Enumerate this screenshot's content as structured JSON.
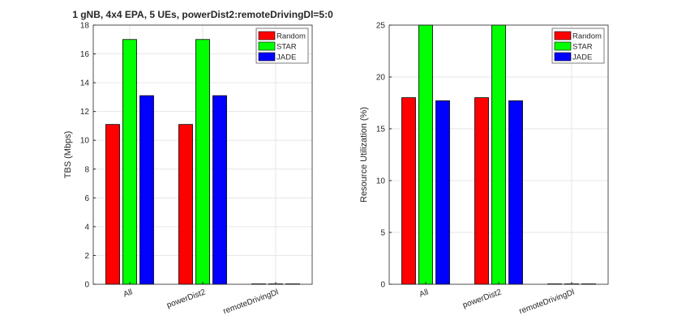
{
  "chart_data": [
    {
      "type": "bar",
      "title": "1 gNB, 4x4 EPA, 5 UEs, powerDist2:remoteDrivingDl=5:0",
      "xlabel": "",
      "ylabel": "TBS (Mbps)",
      "categories": [
        "All",
        "powerDist2",
        "remoteDrivingDl"
      ],
      "series": [
        {
          "name": "Random",
          "values": [
            11.1,
            11.1,
            0
          ],
          "color": "#ff0000"
        },
        {
          "name": "STAR",
          "values": [
            17.0,
            17.0,
            0
          ],
          "color": "#00ff00"
        },
        {
          "name": "JADE",
          "values": [
            13.1,
            13.1,
            0
          ],
          "color": "#0000ff"
        }
      ],
      "ylim": [
        0,
        18
      ],
      "yticks": [
        "0",
        "2",
        "4",
        "6",
        "8",
        "10",
        "12",
        "14",
        "16",
        "18"
      ],
      "grid": true,
      "legend_position": "top-right"
    },
    {
      "type": "bar",
      "title": "",
      "xlabel": "",
      "ylabel": "Resource Utilization (%)",
      "categories": [
        "All",
        "powerDist2",
        "remoteDrivingDl"
      ],
      "series": [
        {
          "name": "Random",
          "values": [
            18.0,
            18.0,
            0
          ],
          "color": "#ff0000"
        },
        {
          "name": "STAR",
          "values": [
            25.0,
            25.0,
            0
          ],
          "color": "#00ff00"
        },
        {
          "name": "JADE",
          "values": [
            17.7,
            17.7,
            0
          ],
          "color": "#0000ff"
        }
      ],
      "ylim": [
        0,
        25
      ],
      "yticks": [
        "0",
        "5",
        "10",
        "15",
        "20",
        "25"
      ],
      "grid": true,
      "legend_position": "top-right"
    }
  ]
}
